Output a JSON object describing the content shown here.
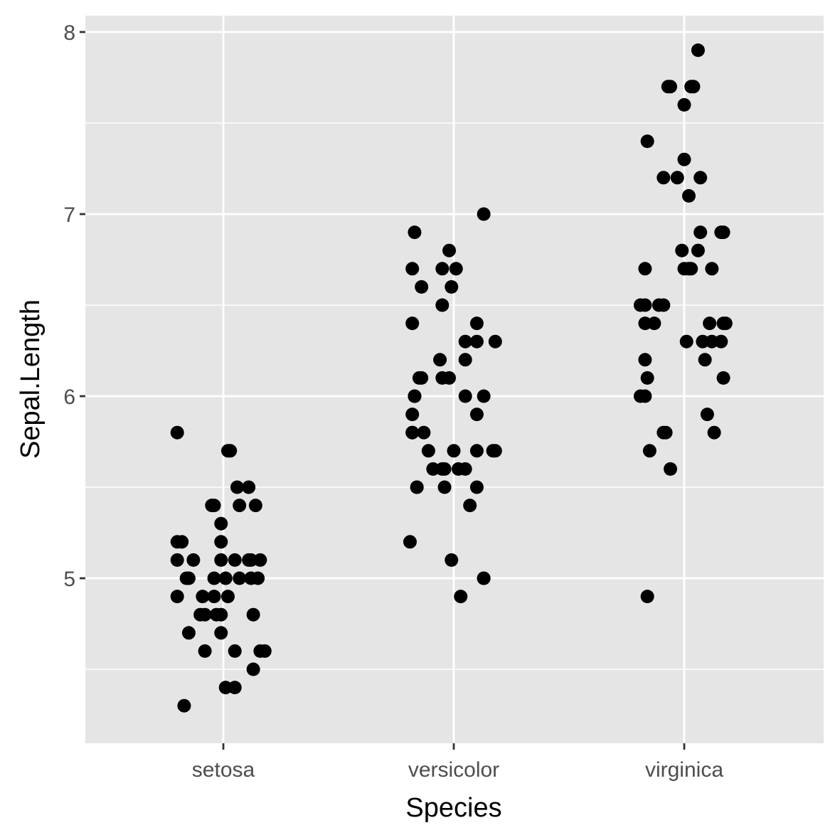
{
  "chart_data": {
    "type": "scatter",
    "xlabel": "Species",
    "ylabel": "Sepal.Length",
    "categories": [
      "setosa",
      "versicolor",
      "virginica"
    ],
    "yticks": [
      "5",
      "6",
      "7",
      "8"
    ],
    "ylim": [
      4.175,
      8.1
    ],
    "grid": true,
    "jitter": true,
    "colors": {
      "panel": "#e5e5e5",
      "grid": "#ffffff",
      "point": "#000000",
      "tick": "#333333",
      "tick_label": "#4d4d4d"
    },
    "points": [
      {
        "category": "setosa",
        "offset": -0.2,
        "y": 5.8
      },
      {
        "category": "setosa",
        "offset": 0.02,
        "y": 5.7
      },
      {
        "category": "setosa",
        "offset": 0.03,
        "y": 5.7
      },
      {
        "category": "setosa",
        "offset": 0.06,
        "y": 5.5
      },
      {
        "category": "setosa",
        "offset": 0.11,
        "y": 5.5
      },
      {
        "category": "setosa",
        "offset": -0.05,
        "y": 5.4
      },
      {
        "category": "setosa",
        "offset": 0.14,
        "y": 5.4
      },
      {
        "category": "setosa",
        "offset": 0.07,
        "y": 5.4
      },
      {
        "category": "setosa",
        "offset": -0.04,
        "y": 5.4
      },
      {
        "category": "setosa",
        "offset": -0.01,
        "y": 5.3
      },
      {
        "category": "setosa",
        "offset": -0.01,
        "y": 5.2
      },
      {
        "category": "setosa",
        "offset": -0.2,
        "y": 5.2
      },
      {
        "category": "setosa",
        "offset": -0.18,
        "y": 5.2
      },
      {
        "category": "setosa",
        "offset": -0.13,
        "y": 5.1
      },
      {
        "category": "setosa",
        "offset": 0.12,
        "y": 5.1
      },
      {
        "category": "setosa",
        "offset": 0.16,
        "y": 5.1
      },
      {
        "category": "setosa",
        "offset": -0.2,
        "y": 5.1
      },
      {
        "category": "setosa",
        "offset": -0.01,
        "y": 5.1
      },
      {
        "category": "setosa",
        "offset": 0.05,
        "y": 5.1
      },
      {
        "category": "setosa",
        "offset": 0.11,
        "y": 5.1
      },
      {
        "category": "setosa",
        "offset": 0.07,
        "y": 5.0
      },
      {
        "category": "setosa",
        "offset": -0.16,
        "y": 5.0
      },
      {
        "category": "setosa",
        "offset": 0.12,
        "y": 5.0
      },
      {
        "category": "setosa",
        "offset": 0.01,
        "y": 5.0
      },
      {
        "category": "setosa",
        "offset": 0.15,
        "y": 5.0
      },
      {
        "category": "setosa",
        "offset": -0.04,
        "y": 5.0
      },
      {
        "category": "setosa",
        "offset": -0.15,
        "y": 5.0
      },
      {
        "category": "setosa",
        "offset": -0.2,
        "y": 4.9
      },
      {
        "category": "setosa",
        "offset": -0.04,
        "y": 4.9
      },
      {
        "category": "setosa",
        "offset": -0.09,
        "y": 4.9
      },
      {
        "category": "setosa",
        "offset": 0.02,
        "y": 4.9
      },
      {
        "category": "setosa",
        "offset": -0.03,
        "y": 4.8
      },
      {
        "category": "setosa",
        "offset": -0.01,
        "y": 4.8
      },
      {
        "category": "setosa",
        "offset": 0.13,
        "y": 4.8
      },
      {
        "category": "setosa",
        "offset": -0.1,
        "y": 4.8
      },
      {
        "category": "setosa",
        "offset": -0.08,
        "y": 4.8
      },
      {
        "category": "setosa",
        "offset": -0.15,
        "y": 4.7
      },
      {
        "category": "setosa",
        "offset": -0.01,
        "y": 4.7
      },
      {
        "category": "setosa",
        "offset": 0.16,
        "y": 4.6
      },
      {
        "category": "setosa",
        "offset": 0.18,
        "y": 4.6
      },
      {
        "category": "setosa",
        "offset": 0.05,
        "y": 4.6
      },
      {
        "category": "setosa",
        "offset": -0.08,
        "y": 4.6
      },
      {
        "category": "setosa",
        "offset": 0.13,
        "y": 4.5
      },
      {
        "category": "setosa",
        "offset": 0.01,
        "y": 4.4
      },
      {
        "category": "setosa",
        "offset": 0.05,
        "y": 4.4
      },
      {
        "category": "setosa",
        "offset": -0.17,
        "y": 4.3
      },
      {
        "category": "versicolor",
        "offset": 0.13,
        "y": 7.0
      },
      {
        "category": "versicolor",
        "offset": -0.17,
        "y": 6.9
      },
      {
        "category": "versicolor",
        "offset": -0.02,
        "y": 6.8
      },
      {
        "category": "versicolor",
        "offset": -0.18,
        "y": 6.7
      },
      {
        "category": "versicolor",
        "offset": -0.05,
        "y": 6.7
      },
      {
        "category": "versicolor",
        "offset": 0.01,
        "y": 6.7
      },
      {
        "category": "versicolor",
        "offset": -0.14,
        "y": 6.6
      },
      {
        "category": "versicolor",
        "offset": -0.01,
        "y": 6.6
      },
      {
        "category": "versicolor",
        "offset": -0.05,
        "y": 6.5
      },
      {
        "category": "versicolor",
        "offset": 0.1,
        "y": 6.4
      },
      {
        "category": "versicolor",
        "offset": -0.18,
        "y": 6.4
      },
      {
        "category": "versicolor",
        "offset": 0.05,
        "y": 6.3
      },
      {
        "category": "versicolor",
        "offset": 0.1,
        "y": 6.3
      },
      {
        "category": "versicolor",
        "offset": 0.18,
        "y": 6.3
      },
      {
        "category": "versicolor",
        "offset": 0.05,
        "y": 6.2
      },
      {
        "category": "versicolor",
        "offset": -0.06,
        "y": 6.2
      },
      {
        "category": "versicolor",
        "offset": -0.15,
        "y": 6.1
      },
      {
        "category": "versicolor",
        "offset": -0.14,
        "y": 6.1
      },
      {
        "category": "versicolor",
        "offset": -0.02,
        "y": 6.1
      },
      {
        "category": "versicolor",
        "offset": -0.05,
        "y": 6.1
      },
      {
        "category": "versicolor",
        "offset": -0.17,
        "y": 6.0
      },
      {
        "category": "versicolor",
        "offset": 0.05,
        "y": 6.0
      },
      {
        "category": "versicolor",
        "offset": 0.13,
        "y": 6.0
      },
      {
        "category": "versicolor",
        "offset": -0.17,
        "y": 6.0
      },
      {
        "category": "versicolor",
        "offset": 0.1,
        "y": 5.9
      },
      {
        "category": "versicolor",
        "offset": -0.18,
        "y": 5.9
      },
      {
        "category": "versicolor",
        "offset": -0.18,
        "y": 5.8
      },
      {
        "category": "versicolor",
        "offset": -0.13,
        "y": 5.8
      },
      {
        "category": "versicolor",
        "offset": -0.18,
        "y": 5.8
      },
      {
        "category": "versicolor",
        "offset": 0.1,
        "y": 5.7
      },
      {
        "category": "versicolor",
        "offset": 0.0,
        "y": 5.7
      },
      {
        "category": "versicolor",
        "offset": -0.11,
        "y": 5.7
      },
      {
        "category": "versicolor",
        "offset": 0.17,
        "y": 5.7
      },
      {
        "category": "versicolor",
        "offset": 0.18,
        "y": 5.7
      },
      {
        "category": "versicolor",
        "offset": 0.05,
        "y": 5.6
      },
      {
        "category": "versicolor",
        "offset": 0.02,
        "y": 5.6
      },
      {
        "category": "versicolor",
        "offset": -0.05,
        "y": 5.6
      },
      {
        "category": "versicolor",
        "offset": -0.09,
        "y": 5.6
      },
      {
        "category": "versicolor",
        "offset": -0.04,
        "y": 5.6
      },
      {
        "category": "versicolor",
        "offset": 0.1,
        "y": 5.5
      },
      {
        "category": "versicolor",
        "offset": -0.16,
        "y": 5.5
      },
      {
        "category": "versicolor",
        "offset": -0.04,
        "y": 5.5
      },
      {
        "category": "versicolor",
        "offset": -0.16,
        "y": 5.5
      },
      {
        "category": "versicolor",
        "offset": 0.07,
        "y": 5.4
      },
      {
        "category": "versicolor",
        "offset": -0.19,
        "y": 5.2
      },
      {
        "category": "versicolor",
        "offset": -0.01,
        "y": 5.1
      },
      {
        "category": "versicolor",
        "offset": 0.13,
        "y": 5.0
      },
      {
        "category": "versicolor",
        "offset": 0.13,
        "y": 5.0
      },
      {
        "category": "versicolor",
        "offset": 0.03,
        "y": 4.9
      },
      {
        "category": "virginica",
        "offset": 0.06,
        "y": 7.9
      },
      {
        "category": "virginica",
        "offset": -0.07,
        "y": 7.7
      },
      {
        "category": "virginica",
        "offset": 0.03,
        "y": 7.7
      },
      {
        "category": "virginica",
        "offset": -0.06,
        "y": 7.7
      },
      {
        "category": "virginica",
        "offset": 0.04,
        "y": 7.7
      },
      {
        "category": "virginica",
        "offset": 0.0,
        "y": 7.6
      },
      {
        "category": "virginica",
        "offset": -0.16,
        "y": 7.4
      },
      {
        "category": "virginica",
        "offset": 0.0,
        "y": 7.3
      },
      {
        "category": "virginica",
        "offset": -0.03,
        "y": 7.2
      },
      {
        "category": "virginica",
        "offset": -0.09,
        "y": 7.2
      },
      {
        "category": "virginica",
        "offset": 0.07,
        "y": 7.2
      },
      {
        "category": "virginica",
        "offset": 0.02,
        "y": 7.1
      },
      {
        "category": "virginica",
        "offset": 0.16,
        "y": 6.9
      },
      {
        "category": "virginica",
        "offset": 0.07,
        "y": 6.9
      },
      {
        "category": "virginica",
        "offset": 0.17,
        "y": 6.9
      },
      {
        "category": "virginica",
        "offset": -0.01,
        "y": 6.8
      },
      {
        "category": "virginica",
        "offset": 0.06,
        "y": 6.8
      },
      {
        "category": "virginica",
        "offset": -0.17,
        "y": 6.7
      },
      {
        "category": "virginica",
        "offset": 0.03,
        "y": 6.7
      },
      {
        "category": "virginica",
        "offset": 0.12,
        "y": 6.7
      },
      {
        "category": "virginica",
        "offset": 0.0,
        "y": 6.7
      },
      {
        "category": "virginica",
        "offset": 0.02,
        "y": 6.7
      },
      {
        "category": "virginica",
        "offset": -0.19,
        "y": 6.5
      },
      {
        "category": "virginica",
        "offset": -0.11,
        "y": 6.5
      },
      {
        "category": "virginica",
        "offset": -0.09,
        "y": 6.5
      },
      {
        "category": "virginica",
        "offset": -0.17,
        "y": 6.5
      },
      {
        "category": "virginica",
        "offset": 0.17,
        "y": 6.4
      },
      {
        "category": "virginica",
        "offset": 0.11,
        "y": 6.4
      },
      {
        "category": "virginica",
        "offset": 0.18,
        "y": 6.4
      },
      {
        "category": "virginica",
        "offset": -0.17,
        "y": 6.4
      },
      {
        "category": "virginica",
        "offset": -0.13,
        "y": 6.4
      },
      {
        "category": "virginica",
        "offset": 0.16,
        "y": 6.3
      },
      {
        "category": "virginica",
        "offset": 0.01,
        "y": 6.3
      },
      {
        "category": "virginica",
        "offset": 0.08,
        "y": 6.3
      },
      {
        "category": "virginica",
        "offset": 0.12,
        "y": 6.3
      },
      {
        "category": "virginica",
        "offset": -0.17,
        "y": 6.2
      },
      {
        "category": "virginica",
        "offset": 0.09,
        "y": 6.2
      },
      {
        "category": "virginica",
        "offset": -0.16,
        "y": 6.1
      },
      {
        "category": "virginica",
        "offset": 0.17,
        "y": 6.1
      },
      {
        "category": "virginica",
        "offset": -0.19,
        "y": 6.0
      },
      {
        "category": "virginica",
        "offset": -0.17,
        "y": 6.0
      },
      {
        "category": "virginica",
        "offset": 0.1,
        "y": 5.9
      },
      {
        "category": "virginica",
        "offset": 0.13,
        "y": 5.8
      },
      {
        "category": "virginica",
        "offset": -0.08,
        "y": 5.8
      },
      {
        "category": "virginica",
        "offset": -0.09,
        "y": 5.8
      },
      {
        "category": "virginica",
        "offset": -0.15,
        "y": 5.7
      },
      {
        "category": "virginica",
        "offset": -0.06,
        "y": 5.6
      },
      {
        "category": "virginica",
        "offset": -0.16,
        "y": 4.9
      }
    ]
  }
}
